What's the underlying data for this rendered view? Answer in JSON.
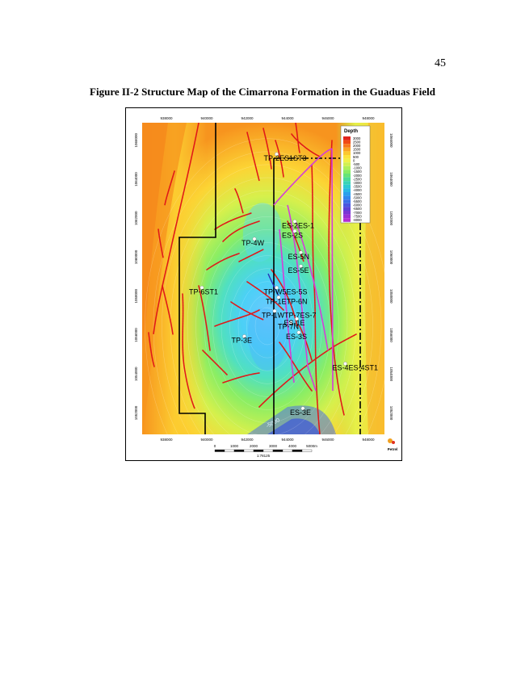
{
  "page": {
    "number": "45"
  },
  "figure": {
    "title": "Figure II-2 Structure Map of the Cimarrona Formation in the Guaduas Field",
    "x_ticks": [
      "938000",
      "940000",
      "942000",
      "944000",
      "946000",
      "948000"
    ],
    "y_ticks": [
      "1066000",
      "1064000",
      "1062000",
      "1060000",
      "1058000",
      "1056000",
      "1054000",
      "1052000"
    ],
    "legend": {
      "title": "Depth",
      "values": [
        "3000",
        "2500",
        "2000",
        "1500",
        "1000",
        "500",
        "0",
        "-500",
        "-1000",
        "-1500",
        "-2000",
        "-2500",
        "-3000",
        "-3500",
        "-4000",
        "-4500",
        "-5000",
        "-5500",
        "-6000",
        "-6500",
        "-7000",
        "-7500",
        "-8000"
      ],
      "colors": [
        "#e0241c",
        "#f04a14",
        "#f7781c",
        "#faa424",
        "#fcc830",
        "#fce43c",
        "#f0f048",
        "#d2f050",
        "#aef058",
        "#88ec64",
        "#66e478",
        "#4cdc96",
        "#3ad4b6",
        "#2ecad2",
        "#2ab8e4",
        "#2ca0ec",
        "#3288ee",
        "#3a6ee8",
        "#4a56e0",
        "#5c42d8",
        "#7a36d4",
        "#9a30d4",
        "#b42ed4"
      ]
    },
    "contour_label": "-5000",
    "wells": [
      {
        "label": "TP-2ES1ST3",
        "x": 943300,
        "y": 1064950
      },
      {
        "label": "ES-2ES-1",
        "x": 944200,
        "y": 1061500
      },
      {
        "label": "ES-2S",
        "x": 944200,
        "y": 1061000
      },
      {
        "label": "TP-4W",
        "x": 942200,
        "y": 1060600
      },
      {
        "label": "ES-5N",
        "x": 944500,
        "y": 1059900
      },
      {
        "label": "ES-5E",
        "x": 944500,
        "y": 1059200
      },
      {
        "label": "TP-6ST1",
        "x": 939600,
        "y": 1058100
      },
      {
        "label": "TP-W5ES-5S",
        "x": 943300,
        "y": 1058100
      },
      {
        "label": "TP-1ETP-6N",
        "x": 943400,
        "y": 1057600
      },
      {
        "label": "TP-1WTP-7ES-7",
        "x": 943200,
        "y": 1056900
      },
      {
        "label": "TP-7N",
        "x": 944000,
        "y": 1056300
      },
      {
        "label": "ES-1E",
        "x": 944300,
        "y": 1056500
      },
      {
        "label": "ES-3S",
        "x": 944400,
        "y": 1055800
      },
      {
        "label": "TP-3E",
        "x": 941700,
        "y": 1055600
      },
      {
        "label": "ES-4ES-4ST1",
        "x": 946700,
        "y": 1054200
      },
      {
        "label": "ES-3E",
        "x": 944600,
        "y": 1051900
      }
    ],
    "scale_bar": {
      "ticks": [
        "0",
        "1000",
        "2000",
        "3000",
        "4000",
        "5000m"
      ],
      "ratio": "1:78125"
    },
    "logo": "Petrel"
  }
}
